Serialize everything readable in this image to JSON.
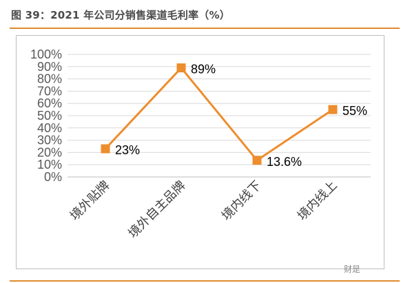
{
  "figure": {
    "title": "图 39：2021 年公司分销售渠道毛利率（%）"
  },
  "watermark": "财是",
  "chart_data": {
    "type": "line",
    "categories": [
      "境外贴牌",
      "境外自主品牌",
      "境内线下",
      "境内线上"
    ],
    "values": [
      23,
      89,
      13.6,
      55
    ],
    "data_labels": [
      "23%",
      "89%",
      "13.6%",
      "55%"
    ],
    "yticks": [
      "0%",
      "10%",
      "20%",
      "30%",
      "40%",
      "50%",
      "60%",
      "70%",
      "80%",
      "90%",
      "100%"
    ],
    "ylim": [
      0,
      100
    ],
    "grid": true,
    "line_color": "#ed8d2d",
    "marker": "square"
  }
}
